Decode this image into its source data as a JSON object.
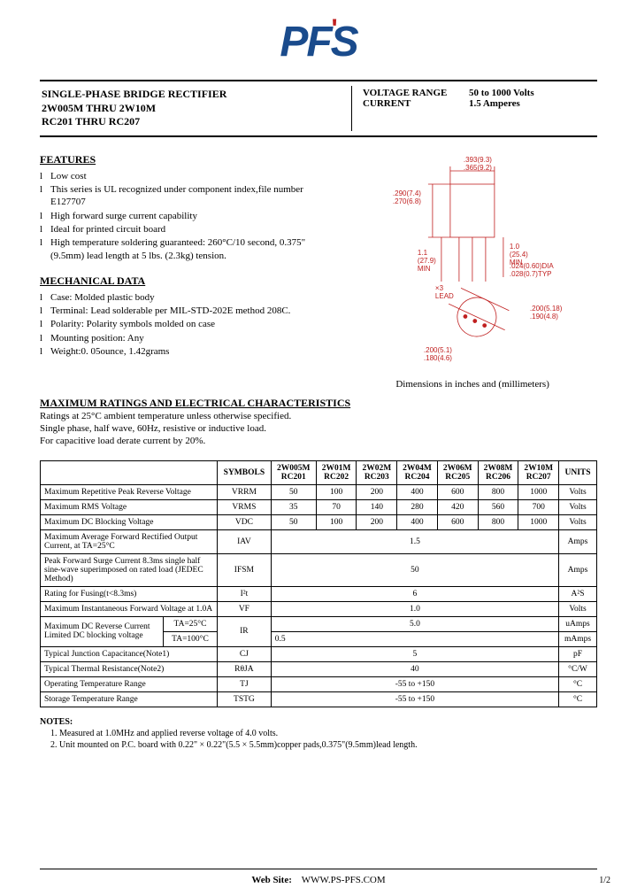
{
  "logo": {
    "text": "PFS"
  },
  "header": {
    "title_line1": "SINGLE-PHASE BRIDGE RECTIFIER",
    "title_line2": "2W005M THRU 2W10M",
    "title_line3": "RC201 THRU RC207",
    "voltage_label": "VOLTAGE RANGE",
    "voltage_value": "50 to 1000 Volts",
    "current_label": "CURRENT",
    "current_value": "1.5 Amperes"
  },
  "features": {
    "title": "FEATURES",
    "items": [
      "Low cost",
      "This series is UL recognized under component index,file number E127707",
      "High forward surge current capability",
      "Ideal for printed circuit board",
      "High temperature soldering guaranteed: 260°C/10 second, 0.375\"(9.5mm) lead length at 5 lbs. (2.3kg) tension."
    ]
  },
  "mechanical": {
    "title": "MECHANICAL DATA",
    "items": [
      "Case: Molded plastic body",
      "Terminal: Lead solderable per MIL-STD-202E method 208C.",
      "Polarity: Polarity symbols molded on case",
      "Mounting position: Any",
      "Weight:0. 05ounce, 1.42grams"
    ]
  },
  "diagram": {
    "caption": "Dimensions in inches and (millimeters)",
    "colors": {
      "line": "#c02020",
      "text": "#c02020"
    },
    "labels": {
      "top": ".393(9.3)\n.365(9.2)",
      "left_upper": ".290(7.4)\n.270(6.8)",
      "left_mid": "1.1\n(27.9)\nMIN",
      "right_mid": "1.0\n(25.4)\nMIN",
      "bottom_right": ".024(0.60)DIA\n.028(0.7)TYP",
      "lead": "×3\nLEAD",
      "circ1": ".200(5.18)\n.190(4.8)",
      "circ2": ".200(5.1)\n.180(4.6)"
    }
  },
  "max_section": {
    "title": "MAXIMUM RATINGS AND ELECTRICAL CHARACTERISTICS",
    "line1": "Ratings at 25°C ambient temperature unless otherwise specified.",
    "line2": "Single phase, half wave, 60Hz, resistive or inductive load.",
    "line3": "For capacitive load derate current by 20%."
  },
  "table": {
    "head": [
      "",
      "SYMBOLS",
      "2W005M\nRC201",
      "2W01M\nRC202",
      "2W02M\nRC203",
      "2W04M\nRC204",
      "2W06M\nRC205",
      "2W08M\nRC206",
      "2W10M\nRC207",
      "UNITS"
    ],
    "rows": [
      {
        "p": "Maximum Repetitive Peak Reverse Voltage",
        "s": "VRRM",
        "v": [
          "50",
          "100",
          "200",
          "400",
          "600",
          "800",
          "1000"
        ],
        "u": "Volts"
      },
      {
        "p": "Maximum RMS Voltage",
        "s": "VRMS",
        "v": [
          "35",
          "70",
          "140",
          "280",
          "420",
          "560",
          "700"
        ],
        "u": "Volts"
      },
      {
        "p": "Maximum DC Blocking Voltage",
        "s": "VDC",
        "v": [
          "50",
          "100",
          "200",
          "400",
          "600",
          "800",
          "1000"
        ],
        "u": "Volts"
      },
      {
        "p": "Maximum Average Forward Rectified Output Current, at TA=25°C",
        "s": "IAV",
        "span": "1.5",
        "u": "Amps"
      },
      {
        "p": "Peak Forward Surge Current 8.3ms single half sine-wave superimposed on rated load (JEDEC Method)",
        "s": "IFSM",
        "span": "50",
        "u": "Amps"
      },
      {
        "p": "Rating for Fusing(t<8.3ms)",
        "s": "I²t",
        "span": "6",
        "u": "A²S"
      },
      {
        "p": "Maximum Instantaneous Forward Voltage at 1.0A",
        "s": "VF",
        "span": "1.0",
        "u": "Volts"
      }
    ],
    "dc_reverse": {
      "p": "Maximum DC Reverse Current Limited DC blocking voltage",
      "s": "IR",
      "rows": [
        {
          "cond": "TA=25°C",
          "val": "5.0",
          "u": "uAmps"
        },
        {
          "cond": "TA=100°C",
          "val": "0.5",
          "u": "mAmps"
        }
      ]
    },
    "tail_rows": [
      {
        "p": "Typical Junction Capacitance(Note1)",
        "s": "CJ",
        "span": "5",
        "u": "pF"
      },
      {
        "p": "Typical Thermal Resistance(Note2)",
        "s": "RθJA",
        "span": "40",
        "u": "°C/W"
      },
      {
        "p": "Operating Temperature Range",
        "s": "TJ",
        "span": "-55 to +150",
        "u": "°C"
      },
      {
        "p": "Storage Temperature Range",
        "s": "TSTG",
        "span": "-55 to +150",
        "u": "°C"
      }
    ]
  },
  "notes": {
    "title": "NOTES:",
    "items": [
      "Measured at 1.0MHz and applied reverse voltage of 4.0 volts.",
      "Unit mounted on P.C. board with 0.22\" × 0.22\"(5.5 × 5.5mm)copper pads,0.375\"(9.5mm)lead length."
    ]
  },
  "footer": {
    "label": "Web Site:",
    "url": "WWW.PS-PFS.COM",
    "page": "1/2"
  }
}
